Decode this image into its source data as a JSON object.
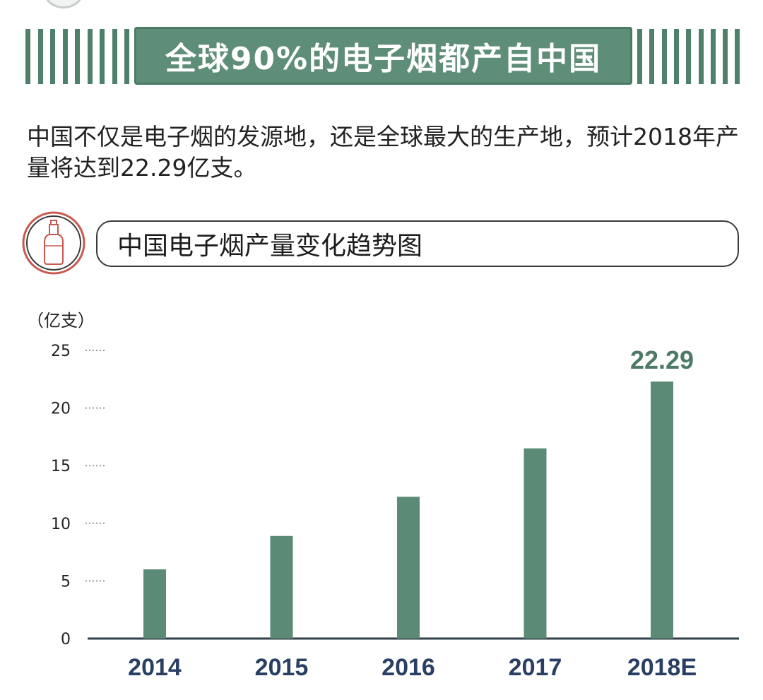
{
  "header": {
    "title": "全球90%的电子烟都产自中国"
  },
  "intro": {
    "text": "中国不仅是电子烟的发源地，还是全球最大的生产地，预计2018年产量将达到22.29亿支。"
  },
  "section": {
    "icon": "bottle-icon",
    "title": "中国电子烟产量变化趋势图"
  },
  "colors": {
    "accent": "#5e8d78",
    "bar": "#5b8b76",
    "stripe": "#4f806b",
    "year_label": "#2a3f63",
    "value_label": "#4d7a66",
    "icon_ring": "#c9584f"
  },
  "chart_data": {
    "type": "bar",
    "title": "中国电子烟产量变化趋势图",
    "ylabel": "（亿支）",
    "xlabel": "",
    "categories": [
      "2014",
      "2015",
      "2016",
      "2017",
      "2018E"
    ],
    "values": [
      6.0,
      8.9,
      12.3,
      16.5,
      22.29
    ],
    "ylim": [
      0,
      25
    ],
    "yticks": [
      "0",
      "5",
      "10",
      "15",
      "20",
      "25"
    ],
    "grid": "dotted tick marks only",
    "annotations": [
      {
        "category": "2018E",
        "text": "22.29"
      }
    ]
  }
}
